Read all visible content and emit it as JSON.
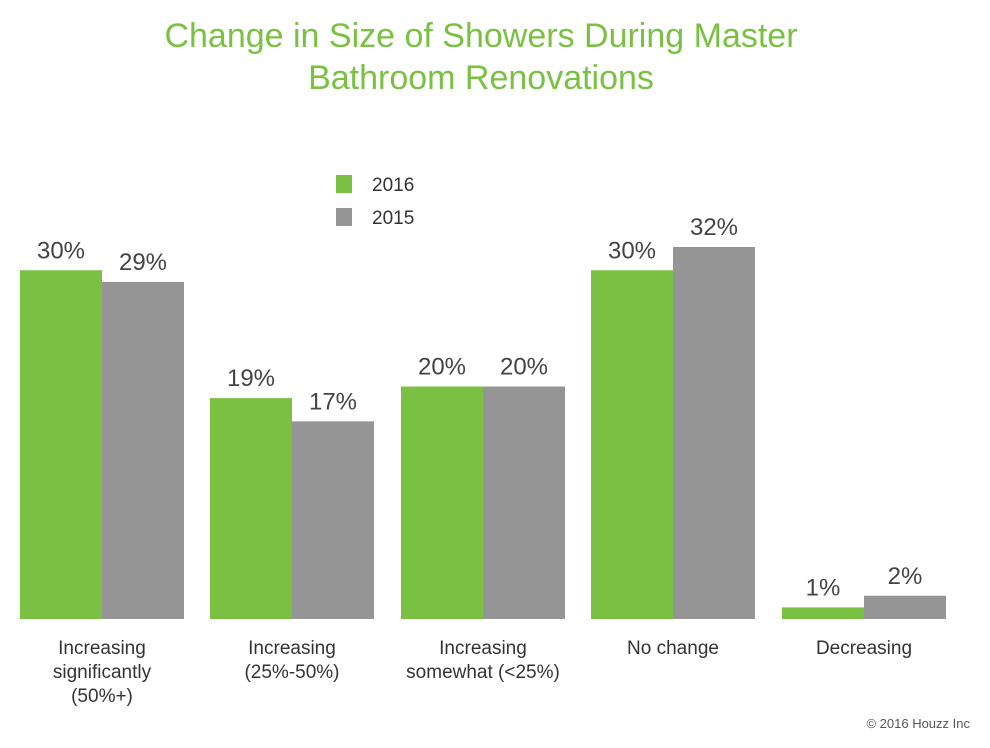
{
  "chart_data": {
    "type": "bar",
    "title_lines": [
      "Change in Size of Showers During Master",
      "Bathroom Renovations"
    ],
    "categories": [
      [
        "Increasing",
        "significantly",
        "(50%+)"
      ],
      [
        "Increasing",
        "(25%-50%)"
      ],
      [
        "Increasing",
        "somewhat (<25%)"
      ],
      [
        "No change"
      ],
      [
        "Decreasing"
      ]
    ],
    "series": [
      {
        "name": "2016",
        "color": "#7ac143",
        "values": [
          30,
          19,
          20,
          30,
          1
        ],
        "labels": [
          "30%",
          "19%",
          "20%",
          "30%",
          "1%"
        ]
      },
      {
        "name": "2015",
        "color": "#959595",
        "values": [
          29,
          17,
          20,
          32,
          2
        ],
        "labels": [
          "29%",
          "17%",
          "20%",
          "32%",
          "2%"
        ]
      }
    ],
    "ylim": [
      0,
      32
    ],
    "grid": false,
    "legend_position": "top-center"
  },
  "credit": "© 2016 Houzz Inc"
}
